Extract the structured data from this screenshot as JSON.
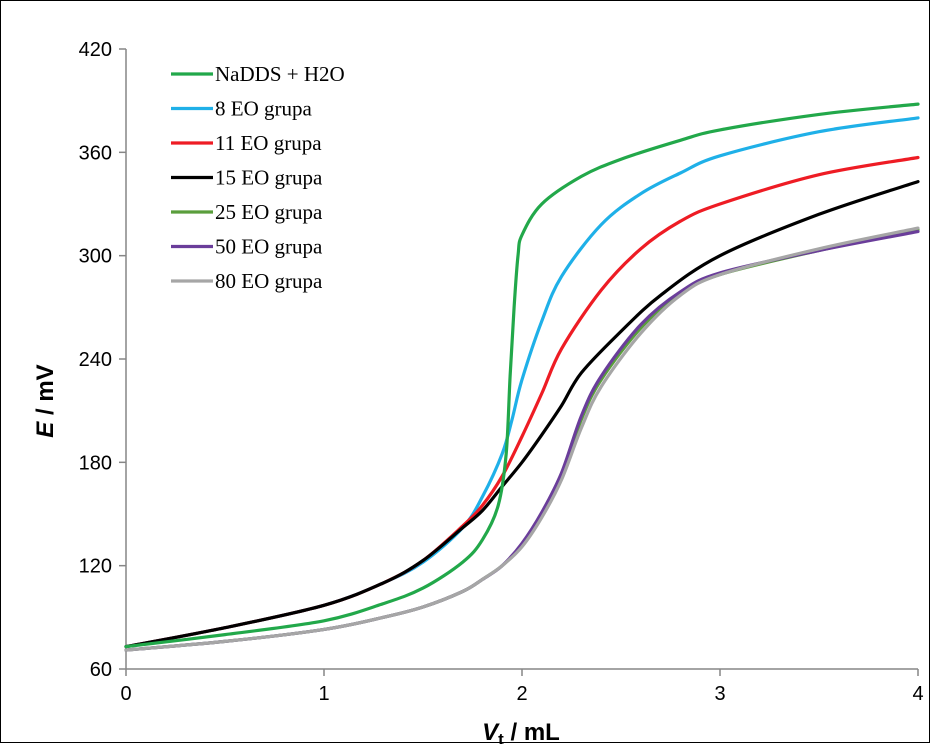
{
  "chart_data": {
    "type": "line",
    "title": "",
    "xlabel": {
      "main": "V",
      "sub": "t",
      "rest": " / mL"
    },
    "ylabel": {
      "main": "E",
      "rest": " / mV"
    },
    "xlim": [
      0,
      4
    ],
    "ylim": [
      60,
      420
    ],
    "xticks": [
      "0",
      "1",
      "2",
      "3",
      "4"
    ],
    "yticks": [
      "60",
      "120",
      "180",
      "240",
      "300",
      "360",
      "420"
    ],
    "grid": false,
    "legend_position": "top-left",
    "series": [
      {
        "name": "NaDDS + H2O",
        "color": "#22a84a",
        "points": [
          [
            0,
            73
          ],
          [
            0.5,
            80
          ],
          [
            1,
            88
          ],
          [
            1.3,
            98
          ],
          [
            1.5,
            107
          ],
          [
            1.7,
            122
          ],
          [
            1.8,
            135
          ],
          [
            1.88,
            155
          ],
          [
            1.92,
            185
          ],
          [
            1.94,
            230
          ],
          [
            1.96,
            270
          ],
          [
            1.98,
            300
          ],
          [
            2.0,
            312
          ],
          [
            2.1,
            330
          ],
          [
            2.3,
            346
          ],
          [
            2.5,
            356
          ],
          [
            2.8,
            367
          ],
          [
            3.0,
            373
          ],
          [
            3.5,
            382
          ],
          [
            4.0,
            388
          ]
        ]
      },
      {
        "name": "8 EO grupa",
        "color": "#1fb0e8",
        "points": [
          [
            0,
            73
          ],
          [
            0.5,
            84
          ],
          [
            1,
            97
          ],
          [
            1.3,
            110
          ],
          [
            1.5,
            122
          ],
          [
            1.7,
            142
          ],
          [
            1.8,
            160
          ],
          [
            1.9,
            185
          ],
          [
            1.95,
            205
          ],
          [
            2.0,
            228
          ],
          [
            2.1,
            262
          ],
          [
            2.2,
            288
          ],
          [
            2.4,
            318
          ],
          [
            2.6,
            336
          ],
          [
            2.8,
            348
          ],
          [
            3.0,
            358
          ],
          [
            3.5,
            372
          ],
          [
            4.0,
            380
          ]
        ]
      },
      {
        "name": "11 EO grupa",
        "color": "#ee1c24",
        "points": [
          [
            0,
            73
          ],
          [
            0.5,
            84
          ],
          [
            1,
            97
          ],
          [
            1.3,
            110
          ],
          [
            1.5,
            123
          ],
          [
            1.7,
            143
          ],
          [
            1.8,
            155
          ],
          [
            1.9,
            172
          ],
          [
            2.0,
            195
          ],
          [
            2.1,
            220
          ],
          [
            2.2,
            246
          ],
          [
            2.4,
            280
          ],
          [
            2.6,
            304
          ],
          [
            2.8,
            320
          ],
          [
            3.0,
            330
          ],
          [
            3.5,
            347
          ],
          [
            4.0,
            357
          ]
        ]
      },
      {
        "name": "15 EO grupa",
        "color": "#000000",
        "points": [
          [
            0,
            73
          ],
          [
            0.5,
            84
          ],
          [
            1,
            97
          ],
          [
            1.3,
            110
          ],
          [
            1.5,
            123
          ],
          [
            1.7,
            142
          ],
          [
            1.8,
            152
          ],
          [
            1.9,
            166
          ],
          [
            2.0,
            180
          ],
          [
            2.1,
            196
          ],
          [
            2.2,
            213
          ],
          [
            2.3,
            232
          ],
          [
            2.5,
            256
          ],
          [
            2.7,
            277
          ],
          [
            3.0,
            300
          ],
          [
            3.5,
            324
          ],
          [
            4.0,
            343
          ]
        ]
      },
      {
        "name": "25 EO grupa",
        "color": "#5a9e3c",
        "points": [
          [
            0,
            71
          ],
          [
            0.5,
            76
          ],
          [
            1,
            83
          ],
          [
            1.3,
            90
          ],
          [
            1.5,
            96
          ],
          [
            1.7,
            105
          ],
          [
            1.8,
            112
          ],
          [
            1.9,
            120
          ],
          [
            2.0,
            132
          ],
          [
            2.1,
            150
          ],
          [
            2.2,
            172
          ],
          [
            2.3,
            205
          ],
          [
            2.4,
            228
          ],
          [
            2.6,
            258
          ],
          [
            2.8,
            278
          ],
          [
            3.0,
            289
          ],
          [
            3.5,
            303
          ],
          [
            4.0,
            315
          ]
        ]
      },
      {
        "name": "50 EO grupa",
        "color": "#6a3d9a",
        "points": [
          [
            0,
            71
          ],
          [
            0.5,
            76
          ],
          [
            1,
            83
          ],
          [
            1.3,
            90
          ],
          [
            1.5,
            96
          ],
          [
            1.7,
            105
          ],
          [
            1.8,
            112
          ],
          [
            1.9,
            120
          ],
          [
            2.0,
            133
          ],
          [
            2.1,
            151
          ],
          [
            2.2,
            174
          ],
          [
            2.3,
            207
          ],
          [
            2.4,
            230
          ],
          [
            2.6,
            260
          ],
          [
            2.8,
            279
          ],
          [
            3.0,
            290
          ],
          [
            3.5,
            303
          ],
          [
            4.0,
            314
          ]
        ]
      },
      {
        "name": "80 EO grupa",
        "color": "#a6a6a6",
        "points": [
          [
            0,
            71
          ],
          [
            0.5,
            76
          ],
          [
            1,
            83
          ],
          [
            1.3,
            90
          ],
          [
            1.5,
            96
          ],
          [
            1.7,
            105
          ],
          [
            1.8,
            112
          ],
          [
            1.9,
            120
          ],
          [
            2.0,
            131
          ],
          [
            2.1,
            148
          ],
          [
            2.2,
            170
          ],
          [
            2.3,
            200
          ],
          [
            2.4,
            224
          ],
          [
            2.6,
            255
          ],
          [
            2.8,
            277
          ],
          [
            3.0,
            289
          ],
          [
            3.5,
            304
          ],
          [
            4.0,
            316
          ]
        ]
      }
    ]
  }
}
